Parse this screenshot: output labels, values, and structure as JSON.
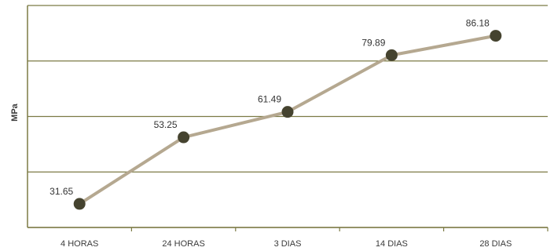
{
  "chart_data": {
    "type": "line",
    "categories": [
      "4 HORAS",
      "24 HORAS",
      "3 DIAS",
      "14 DIAS",
      "28 DIAS"
    ],
    "values": [
      31.65,
      53.25,
      61.49,
      79.89,
      86.18
    ],
    "data_labels": [
      "31.65",
      "53.25",
      "61.49",
      "79.89",
      "86.18"
    ],
    "title": "",
    "xlabel": "",
    "ylabel": "MPa",
    "ylim": [
      24,
      96
    ],
    "grid": true,
    "legend": "none",
    "colors": {
      "line": "#b5a890",
      "marker": "#45432f",
      "grid": "#7b7a44",
      "axis": "#7b7a44",
      "text": "#333333"
    }
  }
}
